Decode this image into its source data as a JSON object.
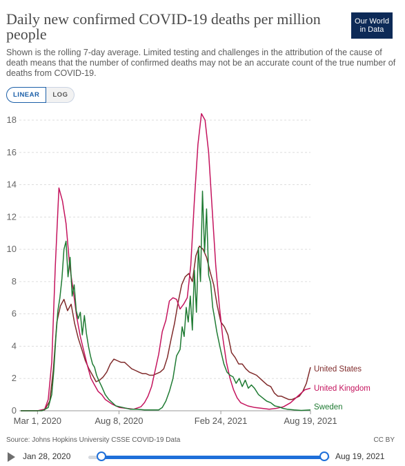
{
  "header": {
    "title": "Daily new confirmed COVID-19 deaths per million people",
    "subtitle": "Shown is the rolling 7-day average. Limited testing and challenges in the attribution of the cause of death means that the number of confirmed deaths may not be an accurate count of the true number of deaths from COVID-19.",
    "logo_line1": "Our World",
    "logo_line2": "in Data",
    "logo_color": "#0d2a57"
  },
  "toggles": {
    "linear_label": "LINEAR",
    "log_label": "LOG",
    "selected": "LINEAR"
  },
  "chart_data": {
    "type": "line",
    "title": "Daily new confirmed COVID-19 deaths per million people",
    "xlabel": "",
    "ylabel": "",
    "x_tick_labels": [
      "Mar 1, 2020",
      "Aug 8, 2020",
      "Feb 24, 2021",
      "Aug 19, 2021"
    ],
    "y_ticks": [
      0,
      2,
      4,
      6,
      8,
      10,
      12,
      14,
      16,
      18
    ],
    "ylim": [
      0,
      19
    ],
    "xlim": [
      "2020-01-28",
      "2021-08-19"
    ],
    "grid": "horizontal dashed",
    "legend": "labels at line ends",
    "series": [
      {
        "name": "United States",
        "color": "#7f2a2a",
        "x": [
          "2020-01-28",
          "2020-03-01",
          "2020-03-15",
          "2020-03-25",
          "2020-04-01",
          "2020-04-08",
          "2020-04-15",
          "2020-04-22",
          "2020-04-29",
          "2020-05-06",
          "2020-05-13",
          "2020-05-20",
          "2020-05-27",
          "2020-06-03",
          "2020-06-10",
          "2020-06-17",
          "2020-06-24",
          "2020-07-01",
          "2020-07-08",
          "2020-07-15",
          "2020-07-22",
          "2020-07-29",
          "2020-08-05",
          "2020-08-12",
          "2020-08-19",
          "2020-08-26",
          "2020-09-02",
          "2020-09-09",
          "2020-09-16",
          "2020-09-23",
          "2020-09-30",
          "2020-10-07",
          "2020-10-14",
          "2020-10-21",
          "2020-10-28",
          "2020-11-04",
          "2020-11-11",
          "2020-11-18",
          "2020-11-25",
          "2020-12-02",
          "2020-12-09",
          "2020-12-16",
          "2020-12-23",
          "2020-12-30",
          "2021-01-06",
          "2021-01-13",
          "2021-01-20",
          "2021-01-27",
          "2021-02-03",
          "2021-02-10",
          "2021-02-17",
          "2021-02-24",
          "2021-03-03",
          "2021-03-10",
          "2021-03-17",
          "2021-03-24",
          "2021-03-31",
          "2021-04-07",
          "2021-04-14",
          "2021-04-21",
          "2021-04-28",
          "2021-05-05",
          "2021-05-12",
          "2021-05-19",
          "2021-05-26",
          "2021-06-02",
          "2021-06-09",
          "2021-06-16",
          "2021-06-23",
          "2021-06-30",
          "2021-07-07",
          "2021-07-14",
          "2021-07-21",
          "2021-07-28",
          "2021-08-04",
          "2021-08-11",
          "2021-08-19"
        ],
        "values": [
          0,
          0,
          0.05,
          0.6,
          2.5,
          5.5,
          6.5,
          6.9,
          6.2,
          6.6,
          5.4,
          4.5,
          3.8,
          3.1,
          2.6,
          2.2,
          1.8,
          1.9,
          2.1,
          2.4,
          2.9,
          3.2,
          3.1,
          3.0,
          3.0,
          2.8,
          2.6,
          2.5,
          2.4,
          2.3,
          2.3,
          2.2,
          2.2,
          2.3,
          2.4,
          2.6,
          3.3,
          4.4,
          5.4,
          6.7,
          7.8,
          8.3,
          8.5,
          8.0,
          9.6,
          10.2,
          10.0,
          9.5,
          8.6,
          7.8,
          6.5,
          5.5,
          5.2,
          4.7,
          3.6,
          3.3,
          2.9,
          2.9,
          2.6,
          2.4,
          2.3,
          2.2,
          2.0,
          1.8,
          1.6,
          1.5,
          1.1,
          0.9,
          0.9,
          0.8,
          0.7,
          0.7,
          0.8,
          0.9,
          1.2,
          1.7,
          2.7
        ]
      },
      {
        "name": "United Kingdom",
        "color": "#c4135d",
        "x": [
          "2020-01-28",
          "2020-03-01",
          "2020-03-15",
          "2020-03-22",
          "2020-03-29",
          "2020-04-05",
          "2020-04-12",
          "2020-04-19",
          "2020-04-26",
          "2020-05-03",
          "2020-05-10",
          "2020-05-17",
          "2020-05-24",
          "2020-05-31",
          "2020-06-07",
          "2020-06-14",
          "2020-06-21",
          "2020-06-28",
          "2020-07-05",
          "2020-07-12",
          "2020-07-26",
          "2020-08-09",
          "2020-08-23",
          "2020-09-06",
          "2020-09-20",
          "2020-09-27",
          "2020-10-04",
          "2020-10-11",
          "2020-10-18",
          "2020-10-25",
          "2020-11-01",
          "2020-11-08",
          "2020-11-15",
          "2020-11-22",
          "2020-11-29",
          "2020-12-06",
          "2020-12-13",
          "2020-12-20",
          "2020-12-27",
          "2021-01-03",
          "2021-01-10",
          "2021-01-17",
          "2021-01-24",
          "2021-01-31",
          "2021-02-07",
          "2021-02-14",
          "2021-02-21",
          "2021-02-28",
          "2021-03-07",
          "2021-03-14",
          "2021-03-21",
          "2021-03-28",
          "2021-04-04",
          "2021-04-18",
          "2021-05-02",
          "2021-05-16",
          "2021-05-30",
          "2021-06-13",
          "2021-06-27",
          "2021-07-11",
          "2021-07-25",
          "2021-08-08",
          "2021-08-19"
        ],
        "values": [
          0,
          0,
          0.1,
          0.7,
          3.0,
          9.0,
          13.8,
          13.0,
          11.6,
          9.0,
          7.5,
          5.8,
          4.6,
          3.7,
          2.8,
          2.0,
          1.6,
          1.2,
          1.0,
          0.7,
          0.4,
          0.2,
          0.15,
          0.1,
          0.25,
          0.5,
          0.9,
          1.5,
          2.5,
          3.5,
          4.9,
          5.6,
          6.8,
          7.0,
          6.9,
          6.3,
          6.6,
          7.0,
          9.0,
          13.0,
          16.5,
          18.4,
          18.0,
          16.0,
          12.5,
          9.0,
          6.5,
          4.5,
          3.0,
          2.0,
          1.3,
          0.8,
          0.5,
          0.3,
          0.2,
          0.15,
          0.1,
          0.15,
          0.25,
          0.5,
          0.9,
          1.3,
          1.4
        ]
      },
      {
        "name": "Sweden",
        "color": "#1e7a32",
        "x": [
          "2020-01-28",
          "2020-03-10",
          "2020-03-22",
          "2020-03-29",
          "2020-04-02",
          "2020-04-06",
          "2020-04-10",
          "2020-04-14",
          "2020-04-18",
          "2020-04-22",
          "2020-04-26",
          "2020-04-30",
          "2020-05-04",
          "2020-05-08",
          "2020-05-12",
          "2020-05-16",
          "2020-05-20",
          "2020-05-24",
          "2020-05-28",
          "2020-06-01",
          "2020-06-05",
          "2020-06-09",
          "2020-06-13",
          "2020-06-17",
          "2020-06-21",
          "2020-06-25",
          "2020-06-29",
          "2020-07-05",
          "2020-07-12",
          "2020-07-19",
          "2020-07-26",
          "2020-08-02",
          "2020-08-16",
          "2020-08-30",
          "2020-09-13",
          "2020-09-27",
          "2020-10-11",
          "2020-10-25",
          "2020-11-01",
          "2020-11-08",
          "2020-11-15",
          "2020-11-22",
          "2020-11-29",
          "2020-12-06",
          "2020-12-10",
          "2020-12-14",
          "2020-12-18",
          "2020-12-22",
          "2020-12-26",
          "2020-12-30",
          "2021-01-03",
          "2021-01-07",
          "2021-01-11",
          "2021-01-15",
          "2021-01-19",
          "2021-01-23",
          "2021-01-27",
          "2021-01-31",
          "2021-02-04",
          "2021-02-08",
          "2021-02-12",
          "2021-02-16",
          "2021-02-20",
          "2021-02-24",
          "2021-03-02",
          "2021-03-08",
          "2021-03-14",
          "2021-03-20",
          "2021-03-26",
          "2021-04-01",
          "2021-04-07",
          "2021-04-13",
          "2021-04-19",
          "2021-04-25",
          "2021-05-01",
          "2021-05-09",
          "2021-05-17",
          "2021-05-25",
          "2021-06-02",
          "2021-06-10",
          "2021-06-18",
          "2021-06-26",
          "2021-07-04",
          "2021-07-18",
          "2021-08-01",
          "2021-08-19"
        ],
        "values": [
          0,
          0,
          0.2,
          1.0,
          2.5,
          4.5,
          6.2,
          7.0,
          8.2,
          10.0,
          10.5,
          8.3,
          9.5,
          7.1,
          7.8,
          6.2,
          5.7,
          6.1,
          4.7,
          5.9,
          4.8,
          4.0,
          3.4,
          2.9,
          2.7,
          2.2,
          1.9,
          1.5,
          1.0,
          0.7,
          0.5,
          0.3,
          0.2,
          0.1,
          0.1,
          0.05,
          0.05,
          0.05,
          0.2,
          0.6,
          1.2,
          2.0,
          3.4,
          3.8,
          5.2,
          4.6,
          6.4,
          5.5,
          7.1,
          5.0,
          8.7,
          6.1,
          10.1,
          8.0,
          13.6,
          9.8,
          12.5,
          8.4,
          7.9,
          6.4,
          5.7,
          4.9,
          4.3,
          3.7,
          2.9,
          2.4,
          2.2,
          2.1,
          1.7,
          2.0,
          1.5,
          1.9,
          1.4,
          1.6,
          1.4,
          1.0,
          0.8,
          0.6,
          0.5,
          0.3,
          0.25,
          0.15,
          0.1,
          0.05,
          0.02,
          0.05
        ]
      }
    ]
  },
  "footer": {
    "source": "Source: Johns Hopkins University CSSE COVID-19 Data",
    "license": "CC BY"
  },
  "timeline": {
    "start_label": "Jan 28, 2020",
    "end_label": "Aug 19, 2021",
    "accent_color": "#1e6fd9"
  }
}
